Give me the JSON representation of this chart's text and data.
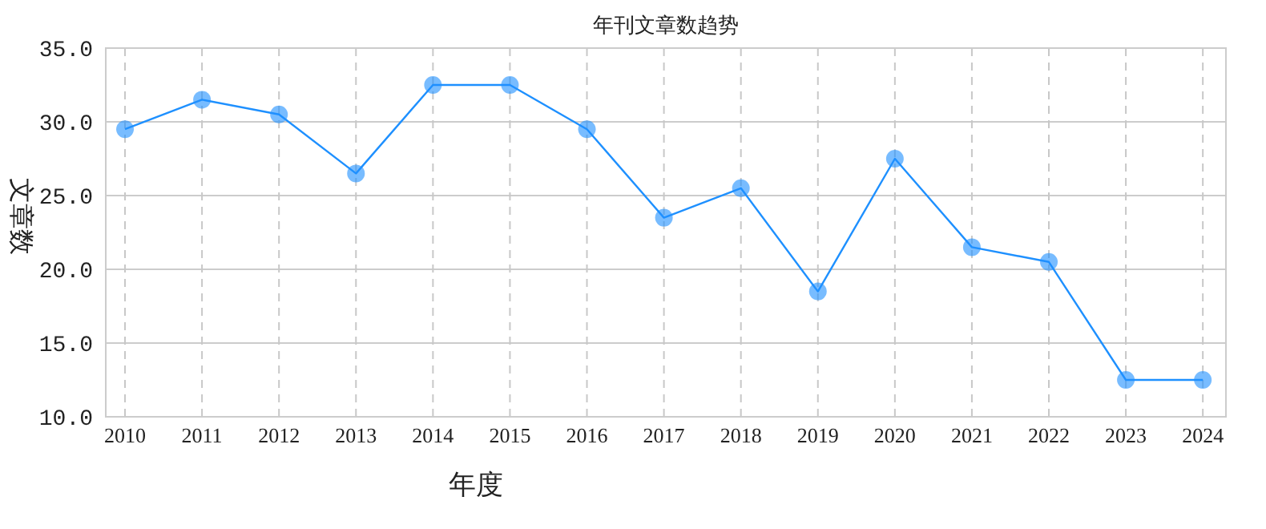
{
  "chart_data": {
    "type": "line",
    "title": "年刊文章数趋势",
    "xlabel": "年度",
    "ylabel": "文章数",
    "categories": [
      "2010",
      "2011",
      "2012",
      "2013",
      "2014",
      "2015",
      "2016",
      "2017",
      "2018",
      "2019",
      "2020",
      "2021",
      "2022",
      "2023",
      "2024"
    ],
    "series": [
      {
        "color": "#1e90ff",
        "values": [
          29.5,
          31.5,
          30.5,
          26.5,
          32.5,
          32.5,
          29.5,
          23.5,
          25.5,
          18.5,
          27.5,
          21.5,
          20.5,
          12.5,
          12.5
        ]
      }
    ],
    "ylim": [
      10,
      35
    ],
    "yticks": [
      {
        "value": 10,
        "label": "10.0"
      },
      {
        "value": 15,
        "label": "15.0"
      },
      {
        "value": 20,
        "label": "20.0"
      },
      {
        "value": 25,
        "label": "25.0"
      },
      {
        "value": 30,
        "label": "30.0"
      },
      {
        "value": 35,
        "label": "35.0"
      }
    ],
    "grid": true,
    "marker": "circle",
    "line_style": "solid"
  }
}
